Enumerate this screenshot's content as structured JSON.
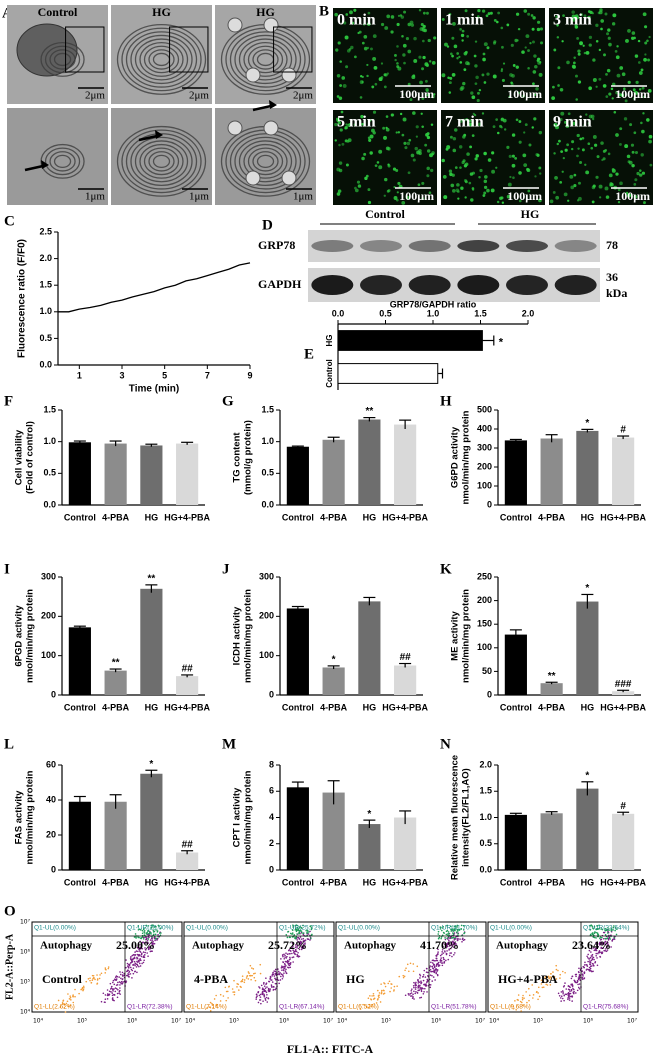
{
  "figure": {
    "A": {
      "label": "A",
      "titles": [
        "Control",
        "HG",
        "HG"
      ],
      "scales": [
        "2μm",
        "2μm",
        "2μm",
        "1μm",
        "1μm",
        "1μm"
      ]
    },
    "B": {
      "label": "B",
      "times": [
        "0 min",
        "1 min",
        "3 min",
        "5 min",
        "7 min",
        "9 min"
      ],
      "scale": "100μm"
    },
    "D": {
      "label": "D",
      "groups": [
        "Control",
        "HG"
      ],
      "proteins": [
        "GRP78",
        "GAPDH"
      ],
      "sizes": [
        "78",
        "36"
      ],
      "unit": "kDa"
    },
    "O": {
      "label": "O",
      "y_axis": "FL2-A::Perp-A",
      "x_axis": "FL1-A:: FITC-A",
      "ticks": [
        "10⁴",
        "10⁵",
        "10⁶",
        "10⁷"
      ],
      "plots": [
        {
          "group": "Control",
          "gate": "Autophagy",
          "gate_value": "25.00%",
          "quadrants": [
            "Q1-UL(0.00%)",
            "Q1-UR(25.00%)",
            "Q1-LL(2.62%)",
            "Q1-LR(72.38%)"
          ]
        },
        {
          "group": "4-PBA",
          "gate": "Autophagy",
          "gate_value": "25.72%",
          "quadrants": [
            "Q1-UL(0.00%)",
            "Q1-UR(25.72%)",
            "Q1-LL(7.14%)",
            "Q1-LR(67.14%)"
          ]
        },
        {
          "group": "HG",
          "gate": "Autophagy",
          "gate_value": "41.70%",
          "quadrants": [
            "Q1-UL(0.00%)",
            "Q1-UR(41.70%)",
            "Q1-LL(6.52%)",
            "Q1-LR(51.78%)"
          ]
        },
        {
          "group": "HG+4-PBA",
          "gate": "Autophagy",
          "gate_value": "23.64%",
          "quadrants": [
            "Q1-UL(0.00%)",
            "Q1-UR(23.64%)",
            "Q1-LL(0.68%)",
            "Q1-LR(75.68%)"
          ]
        }
      ]
    }
  },
  "chart_data": [
    {
      "type": "line",
      "label": "C",
      "ylabel": "Fluorescence ratio (F/F0)",
      "xlabel": "Time (min)",
      "color": "#000000",
      "x": [
        0,
        0.5,
        1,
        1.5,
        2,
        2.5,
        3,
        3.5,
        4,
        4.5,
        5,
        5.5,
        6,
        6.5,
        7,
        7.5,
        8,
        8.5,
        9
      ],
      "values": [
        1.0,
        1.0,
        1.05,
        1.08,
        1.12,
        1.18,
        1.22,
        1.28,
        1.33,
        1.38,
        1.45,
        1.5,
        1.58,
        1.62,
        1.68,
        1.74,
        1.8,
        1.88,
        1.92
      ],
      "xlim": [
        0,
        9
      ],
      "xticks": [
        1,
        3,
        5,
        7,
        9
      ],
      "ylim": [
        0,
        2.5
      ],
      "yticks": [
        {
          "value": 0,
          "label": "0.0"
        },
        0.5,
        {
          "value": 1,
          "label": "1.0"
        },
        1.5,
        {
          "value": 2,
          "label": "2.0"
        },
        2.5
      ]
    },
    {
      "type": "barh",
      "label": "E",
      "xlabel": "GRP78/GAPDH ratio",
      "categories": [
        "HG",
        "Control"
      ],
      "values": [
        1.52,
        1.05
      ],
      "errors": [
        0.12,
        0.05
      ],
      "colors": [
        "#000000",
        "#ffffff"
      ],
      "annotations": [
        "*",
        null
      ],
      "xlim": [
        0,
        2
      ],
      "xticks": [
        {
          "value": 0,
          "label": "0.0"
        },
        0.5,
        {
          "value": 1,
          "label": "1.0"
        },
        1.5,
        {
          "value": 2,
          "label": "2.0"
        }
      ]
    },
    {
      "type": "bar",
      "label": "F",
      "ylabel": [
        "Cell viability",
        "(Fold of control)"
      ],
      "categories": [
        "Control",
        "4-PBA",
        "HG",
        "HG+4-PBA"
      ],
      "values": [
        0.99,
        0.97,
        0.94,
        0.97
      ],
      "errors": [
        0.02,
        0.04,
        0.02,
        0.02
      ],
      "colors": [
        "#000000",
        "#8c8c8c",
        "#6e6e6e",
        "#d9d9d9"
      ],
      "ylim": [
        0,
        1.5
      ],
      "yticks": [
        {
          "value": 0,
          "label": "0.0"
        },
        0.5,
        {
          "value": 1,
          "label": "1.0"
        },
        1.5
      ]
    },
    {
      "type": "bar",
      "label": "G",
      "ylabel": [
        "TG content",
        "(mmol/g protein)"
      ],
      "categories": [
        "Control",
        "4-PBA",
        "HG",
        "HG+4-PBA"
      ],
      "values": [
        0.92,
        1.03,
        1.35,
        1.27
      ],
      "errors": [
        0.01,
        0.04,
        0.03,
        0.07
      ],
      "colors": [
        "#000000",
        "#8c8c8c",
        "#6e6e6e",
        "#d9d9d9"
      ],
      "annotations": [
        null,
        null,
        "**",
        null
      ],
      "ylim": [
        0,
        1.5
      ],
      "yticks": [
        {
          "value": 0,
          "label": "0.0"
        },
        0.5,
        {
          "value": 1,
          "label": "1.0"
        },
        1.5
      ]
    },
    {
      "type": "bar",
      "label": "H",
      "ylabel": [
        "G6PD activity",
        "nmol/min/mg protein"
      ],
      "categories": [
        "Control",
        "4-PBA",
        "HG",
        "HG+4-PBA"
      ],
      "values": [
        340,
        350,
        390,
        355
      ],
      "errors": [
        5,
        20,
        8,
        8
      ],
      "colors": [
        "#000000",
        "#8c8c8c",
        "#6e6e6e",
        "#d9d9d9"
      ],
      "annotations": [
        null,
        null,
        "*",
        "#"
      ],
      "ylim": [
        0,
        500
      ],
      "yticks": [
        0,
        100,
        200,
        300,
        400,
        500
      ]
    },
    {
      "type": "bar",
      "label": "I",
      "ylabel": [
        "6PGD activity",
        "nmol/min/mg protein"
      ],
      "categories": [
        "Control",
        "4-PBA",
        "HG",
        "HG+4-PBA"
      ],
      "values": [
        172,
        62,
        270,
        48
      ],
      "errors": [
        3,
        4,
        10,
        3
      ],
      "colors": [
        "#000000",
        "#8c8c8c",
        "#6e6e6e",
        "#d9d9d9"
      ],
      "annotations": [
        null,
        "**",
        "**",
        "##"
      ],
      "ylim": [
        0,
        300
      ],
      "yticks": [
        0,
        100,
        200,
        300
      ]
    },
    {
      "type": "bar",
      "label": "J",
      "ylabel": [
        "ICDH activity",
        "nmol/min/mg protein"
      ],
      "categories": [
        "Control",
        "4-PBA",
        "HG",
        "HG+4-PBA"
      ],
      "values": [
        220,
        70,
        238,
        75
      ],
      "errors": [
        5,
        4,
        10,
        5
      ],
      "colors": [
        "#000000",
        "#8c8c8c",
        "#6e6e6e",
        "#d9d9d9"
      ],
      "annotations": [
        null,
        "*",
        null,
        "##"
      ],
      "ylim": [
        0,
        300
      ],
      "yticks": [
        0,
        100,
        200,
        300
      ]
    },
    {
      "type": "bar",
      "label": "K",
      "ylabel": [
        "ME activity",
        "nmol/min/mg protein"
      ],
      "categories": [
        "Control",
        "4-PBA",
        "HG",
        "HG+4-PBA"
      ],
      "values": [
        128,
        25,
        198,
        8
      ],
      "errors": [
        10,
        2,
        15,
        2
      ],
      "colors": [
        "#000000",
        "#8c8c8c",
        "#6e6e6e",
        "#d9d9d9"
      ],
      "annotations": [
        null,
        "**",
        "*",
        "###"
      ],
      "ylim": [
        0,
        250
      ],
      "yticks": [
        0,
        50,
        100,
        150,
        200,
        250
      ]
    },
    {
      "type": "bar",
      "label": "L",
      "ylabel": [
        "FAS activity",
        "nmol/min/mg protein"
      ],
      "categories": [
        "Control",
        "4-PBA",
        "HG",
        "HG+4-PBA"
      ],
      "values": [
        39,
        39,
        55,
        10
      ],
      "errors": [
        3,
        4,
        2,
        1
      ],
      "colors": [
        "#000000",
        "#8c8c8c",
        "#6e6e6e",
        "#d9d9d9"
      ],
      "annotations": [
        null,
        null,
        "*",
        "##"
      ],
      "ylim": [
        0,
        60
      ],
      "yticks": [
        0,
        20,
        40,
        60
      ]
    },
    {
      "type": "bar",
      "label": "M",
      "ylabel": [
        "CPT I activity",
        "nmol/min/mg protein"
      ],
      "categories": [
        "Control",
        "4-PBA",
        "HG",
        "HG+4-PBA"
      ],
      "values": [
        6.3,
        5.9,
        3.5,
        4.0
      ],
      "errors": [
        0.4,
        0.9,
        0.3,
        0.5
      ],
      "colors": [
        "#000000",
        "#8c8c8c",
        "#6e6e6e",
        "#d9d9d9"
      ],
      "annotations": [
        null,
        null,
        "*",
        null
      ],
      "ylim": [
        0,
        8
      ],
      "yticks": [
        0,
        2,
        4,
        6,
        8
      ]
    },
    {
      "type": "bar",
      "label": "N",
      "ylabel": [
        "Relative mean fluorescence",
        "intensity(FL2/FL1,AO)"
      ],
      "categories": [
        "Control",
        "4-PBA",
        "HG",
        "HG+4-PBA"
      ],
      "values": [
        1.05,
        1.08,
        1.55,
        1.07
      ],
      "errors": [
        0.03,
        0.03,
        0.13,
        0.03
      ],
      "colors": [
        "#000000",
        "#8c8c8c",
        "#6e6e6e",
        "#d9d9d9"
      ],
      "annotations": [
        null,
        null,
        "*",
        "#"
      ],
      "ylim": [
        0,
        2
      ],
      "yticks": [
        {
          "value": 0,
          "label": "0.0"
        },
        0.5,
        {
          "value": 1,
          "label": "1.0"
        },
        1.5,
        {
          "value": 2,
          "label": "2.0"
        }
      ]
    }
  ]
}
